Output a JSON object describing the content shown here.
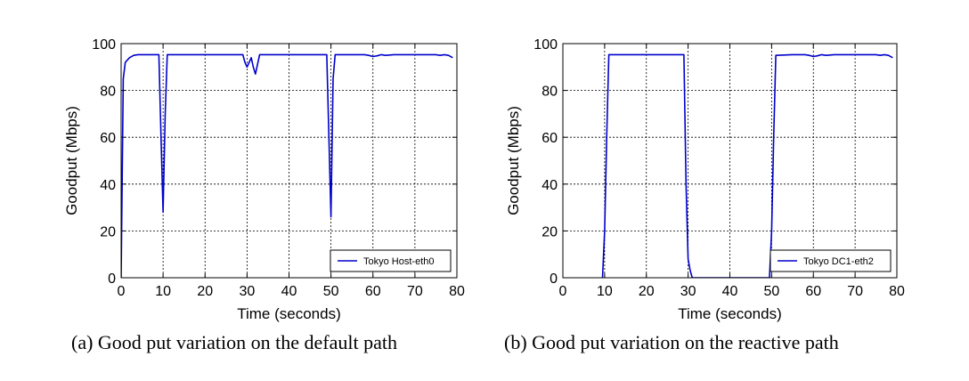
{
  "chart_data": [
    {
      "type": "line",
      "caption": "(a) Good put variation on the default path",
      "xlabel": "Time (seconds)",
      "ylabel": "Goodput (Mbps)",
      "xlim": [
        0,
        80
      ],
      "ylim": [
        0,
        100
      ],
      "xticks": [
        0,
        10,
        20,
        30,
        40,
        50,
        60,
        70,
        80
      ],
      "yticks": [
        0,
        20,
        40,
        60,
        80,
        100
      ],
      "grid": true,
      "legend_position": "bottom-right",
      "series_color": "#0000cc",
      "series": [
        {
          "name": "Tokyo Host-eth0",
          "x": [
            0,
            0.5,
            1,
            2,
            3,
            4,
            5,
            6,
            7,
            8,
            9,
            9.5,
            10,
            10.5,
            11,
            12,
            15,
            20,
            25,
            28,
            29,
            29.5,
            30,
            31,
            31.5,
            32,
            33,
            34,
            35,
            40,
            45,
            49,
            49.5,
            50,
            50.5,
            51,
            52,
            55,
            58,
            59,
            60,
            61,
            62,
            63,
            65,
            68,
            70,
            73,
            75,
            76,
            77,
            78,
            79
          ],
          "y": [
            0,
            85,
            92,
            94,
            95,
            95.3,
            95.3,
            95.3,
            95.3,
            95.3,
            95.3,
            60,
            28,
            70,
            95.3,
            95.3,
            95.3,
            95.3,
            95.3,
            95.3,
            95.3,
            92,
            90,
            94,
            90,
            87,
            95.3,
            95.3,
            95.3,
            95.3,
            95.3,
            95.3,
            60,
            26,
            85,
            95.3,
            95.3,
            95.3,
            95.3,
            95,
            94.5,
            94.8,
            95.3,
            95,
            95.3,
            95.3,
            95.3,
            95.3,
            95.3,
            95,
            95.3,
            95,
            94
          ]
        }
      ]
    },
    {
      "type": "line",
      "caption": "(b) Good put variation on the reactive path",
      "xlabel": "Time (seconds)",
      "ylabel": "Goodput (Mbps)",
      "xlim": [
        0,
        80
      ],
      "ylim": [
        0,
        100
      ],
      "xticks": [
        0,
        10,
        20,
        30,
        40,
        50,
        60,
        70,
        80
      ],
      "yticks": [
        0,
        20,
        40,
        60,
        80,
        100
      ],
      "grid": true,
      "legend_position": "bottom-right",
      "series_color": "#0000cc",
      "series": [
        {
          "name": "Tokyo DC1-eth2",
          "x": [
            9.5,
            10,
            10.5,
            11,
            15,
            20,
            25,
            29,
            29.5,
            30,
            30.5,
            31,
            49.5,
            50,
            50.5,
            51,
            55,
            58,
            59,
            60,
            61,
            62,
            63,
            65,
            68,
            70,
            73,
            75,
            76,
            77,
            78,
            79
          ],
          "y": [
            0,
            20,
            60,
            95.3,
            95.3,
            95.3,
            95.3,
            95.3,
            40,
            8,
            3,
            0,
            0,
            20,
            60,
            95,
            95.3,
            95.3,
            95,
            94.5,
            94.8,
            95.3,
            95,
            95.3,
            95.3,
            95.3,
            95.3,
            95.3,
            95,
            95.3,
            95,
            94
          ]
        }
      ]
    }
  ]
}
